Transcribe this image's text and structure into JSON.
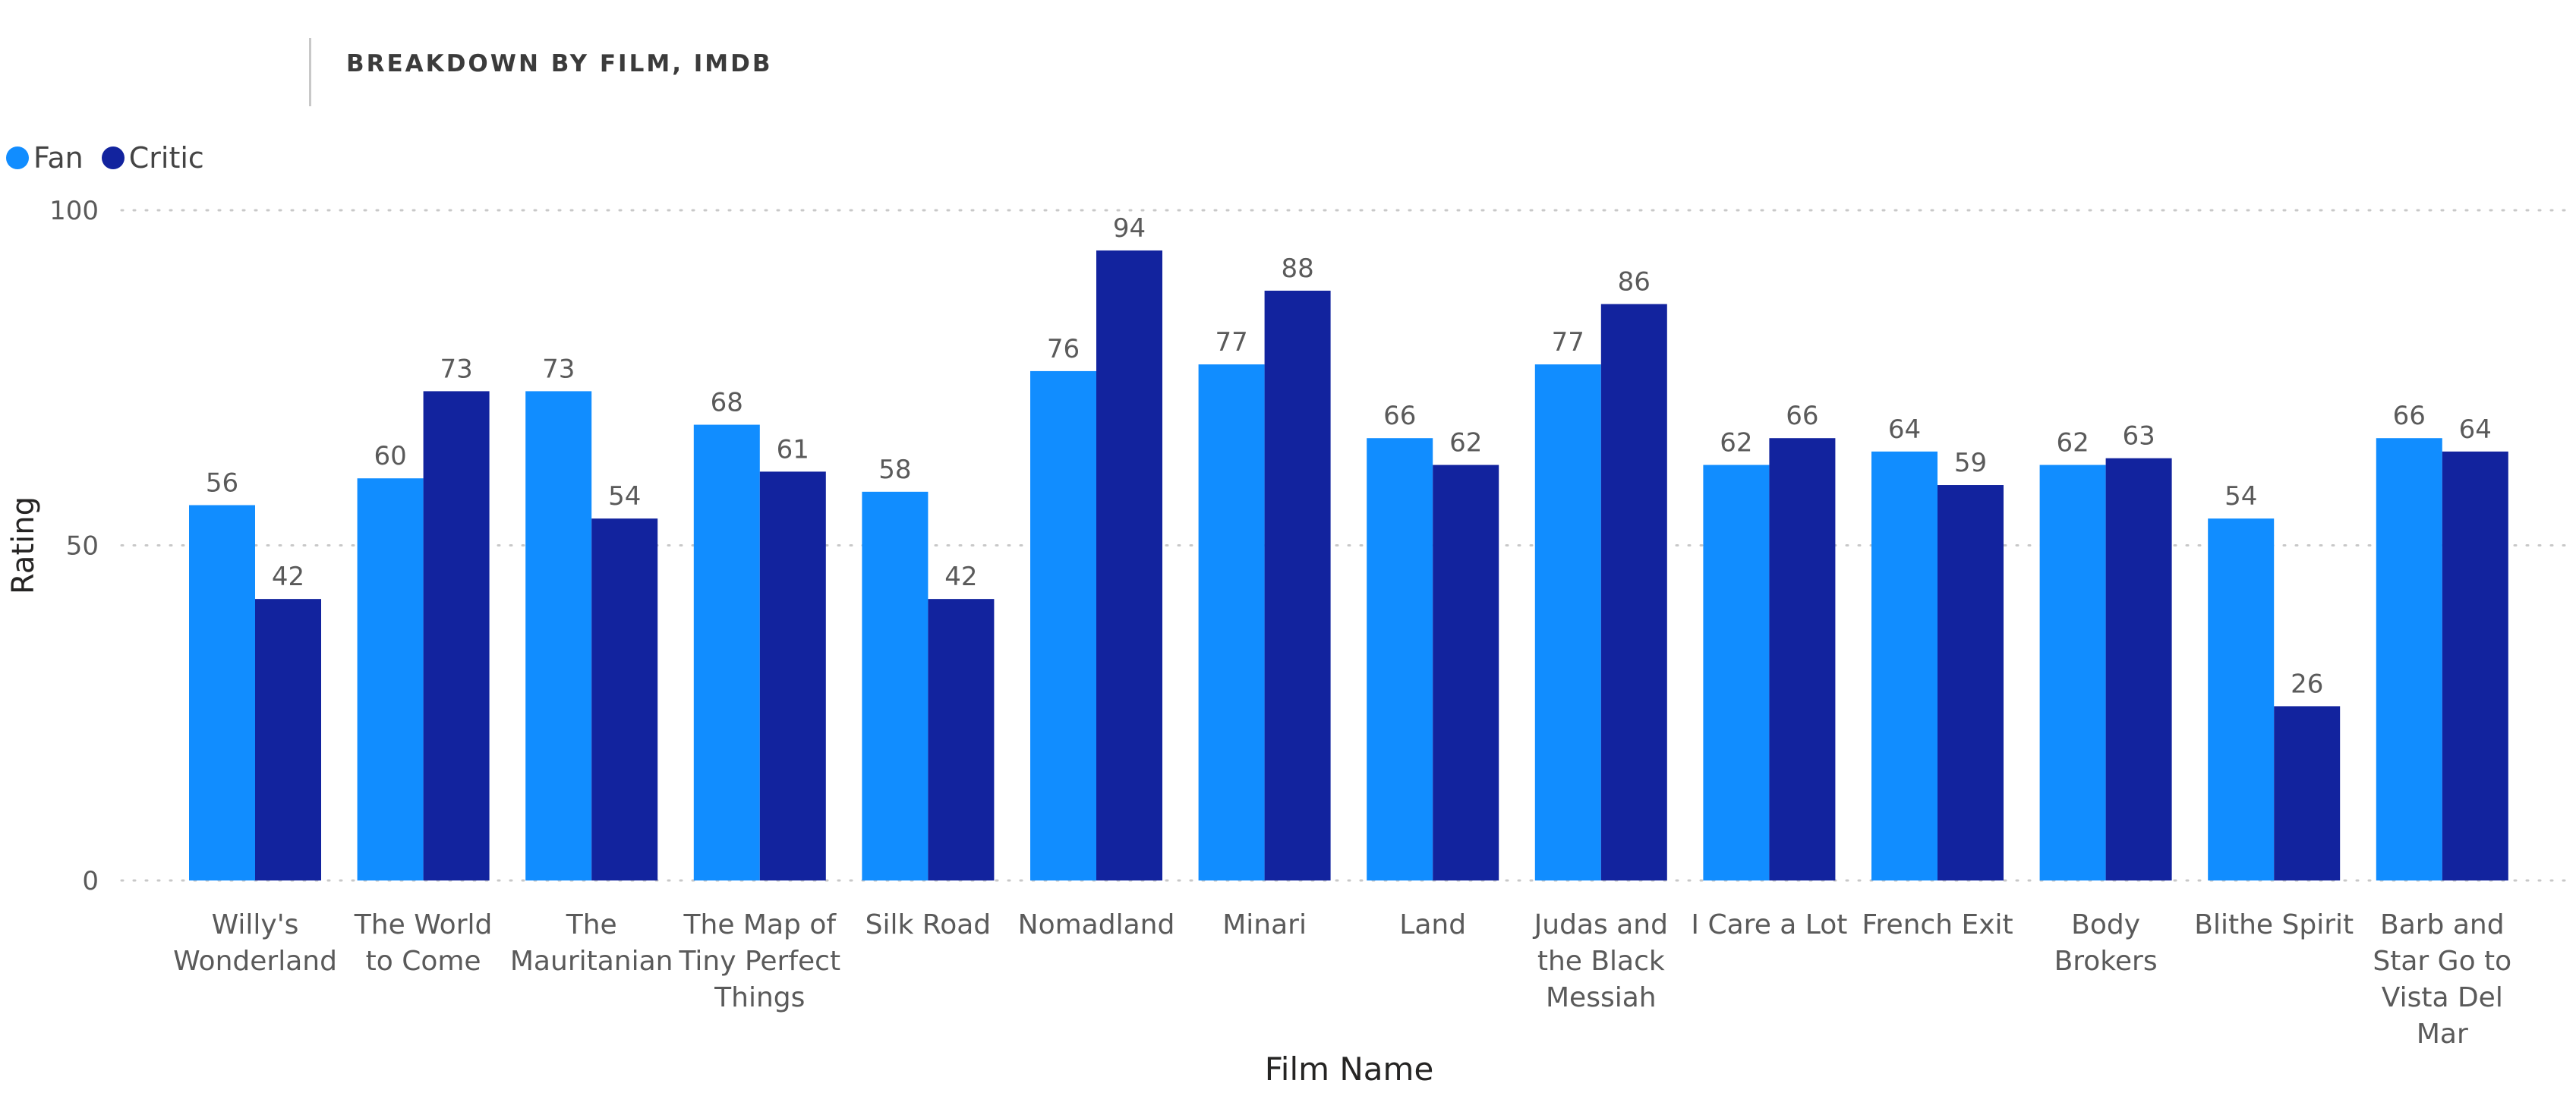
{
  "title": "BREAKDOWN BY FILM, IMDB",
  "colors": {
    "fan": "#118DFF",
    "critic": "#12239E",
    "grid": "#c8c8c8",
    "text": "#5a5a5a"
  },
  "chart_data": {
    "type": "bar",
    "title": "BREAKDOWN BY FILM, IMDB",
    "xlabel": "Film Name",
    "ylabel": "Rating",
    "ylim": [
      0,
      100
    ],
    "yticks": [
      "0",
      "50",
      "100"
    ],
    "grid": true,
    "legend": "top-left",
    "categories": [
      "Willy's Wonderland",
      "The World to Come",
      "The Mauritanian",
      "The Map of Tiny Perfect Things",
      "Silk Road",
      "Nomadland",
      "Minari",
      "Land",
      "Judas and the Black Messiah",
      "I Care a Lot",
      "French Exit",
      "Body Brokers",
      "Blithe Spirit",
      "Barb and Star Go to Vista Del Mar"
    ],
    "category_lines": [
      [
        "Willy's",
        "Wonderland"
      ],
      [
        "The World",
        "to Come"
      ],
      [
        "The",
        "Mauritanian"
      ],
      [
        "The Map of",
        "Tiny Perfect",
        "Things"
      ],
      [
        "Silk Road"
      ],
      [
        "Nomadland"
      ],
      [
        "Minari"
      ],
      [
        "Land"
      ],
      [
        "Judas and",
        "the Black",
        "Messiah"
      ],
      [
        "I Care a Lot"
      ],
      [
        "French Exit"
      ],
      [
        "Body",
        "Brokers"
      ],
      [
        "Blithe Spirit"
      ],
      [
        "Barb and",
        "Star Go to",
        "Vista Del",
        "Mar"
      ]
    ],
    "series": [
      {
        "name": "Fan",
        "values": [
          56,
          60,
          73,
          68,
          58,
          76,
          77,
          66,
          77,
          62,
          64,
          62,
          54,
          66
        ]
      },
      {
        "name": "Critic",
        "values": [
          42,
          73,
          54,
          61,
          42,
          94,
          88,
          62,
          86,
          66,
          59,
          63,
          26,
          64
        ]
      }
    ]
  }
}
